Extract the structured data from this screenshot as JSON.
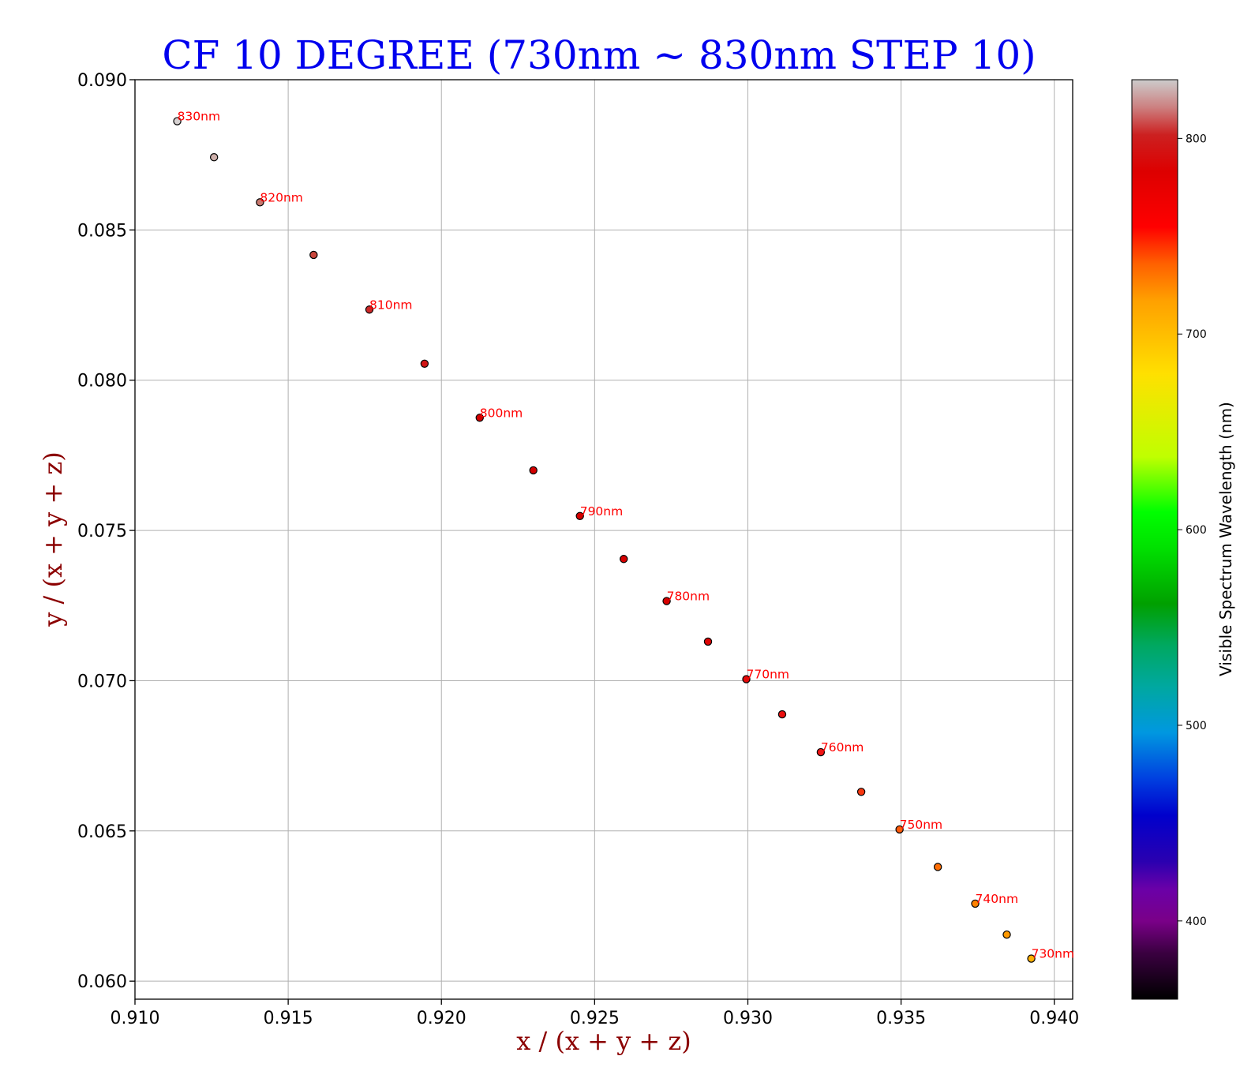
{
  "chart_data": {
    "type": "scatter",
    "title": "CF 10 DEGREE (730nm ~ 830nm STEP 10)",
    "xlabel": "x / (x + y + z)",
    "ylabel": "y / (x + y + z)",
    "xlim": [
      0.91,
      0.9406
    ],
    "ylim": [
      0.0594,
      0.09
    ],
    "xticks": [
      "0.910",
      "0.915",
      "0.920",
      "0.925",
      "0.930",
      "0.935",
      "0.940"
    ],
    "yticks": [
      "0.060",
      "0.065",
      "0.070",
      "0.075",
      "0.080",
      "0.085",
      "0.090"
    ],
    "grid": true,
    "points": [
      {
        "wl": 730,
        "x": 0.93925,
        "y": 0.06075,
        "label": "730nm"
      },
      {
        "wl": 735,
        "x": 0.93845,
        "y": 0.06155,
        "label": ""
      },
      {
        "wl": 740,
        "x": 0.93742,
        "y": 0.06258,
        "label": "740nm"
      },
      {
        "wl": 745,
        "x": 0.9362,
        "y": 0.0638,
        "label": ""
      },
      {
        "wl": 750,
        "x": 0.93495,
        "y": 0.06505,
        "label": "750nm"
      },
      {
        "wl": 755,
        "x": 0.9337,
        "y": 0.0663,
        "label": ""
      },
      {
        "wl": 760,
        "x": 0.93238,
        "y": 0.06762,
        "label": "760nm"
      },
      {
        "wl": 765,
        "x": 0.93112,
        "y": 0.06888,
        "label": ""
      },
      {
        "wl": 770,
        "x": 0.92995,
        "y": 0.07005,
        "label": "770nm"
      },
      {
        "wl": 775,
        "x": 0.9287,
        "y": 0.0713,
        "label": ""
      },
      {
        "wl": 780,
        "x": 0.92735,
        "y": 0.07265,
        "label": "780nm"
      },
      {
        "wl": 785,
        "x": 0.92595,
        "y": 0.07405,
        "label": ""
      },
      {
        "wl": 790,
        "x": 0.92452,
        "y": 0.07548,
        "label": "790nm"
      },
      {
        "wl": 795,
        "x": 0.923,
        "y": 0.077,
        "label": ""
      },
      {
        "wl": 800,
        "x": 0.92125,
        "y": 0.07875,
        "label": "800nm"
      },
      {
        "wl": 805,
        "x": 0.91945,
        "y": 0.08055,
        "label": ""
      },
      {
        "wl": 810,
        "x": 0.91765,
        "y": 0.08235,
        "label": "810nm"
      },
      {
        "wl": 815,
        "x": 0.91583,
        "y": 0.08417,
        "label": ""
      },
      {
        "wl": 820,
        "x": 0.91408,
        "y": 0.08592,
        "label": "820nm"
      },
      {
        "wl": 825,
        "x": 0.91258,
        "y": 0.08742,
        "label": ""
      },
      {
        "wl": 830,
        "x": 0.91138,
        "y": 0.08862,
        "label": "830nm"
      }
    ],
    "colorbar": {
      "label": "Visible Spectrum Wavelength (nm)",
      "range": [
        360,
        830
      ],
      "ticks": [
        "400",
        "500",
        "600",
        "700",
        "800"
      ],
      "placement": "right"
    }
  }
}
